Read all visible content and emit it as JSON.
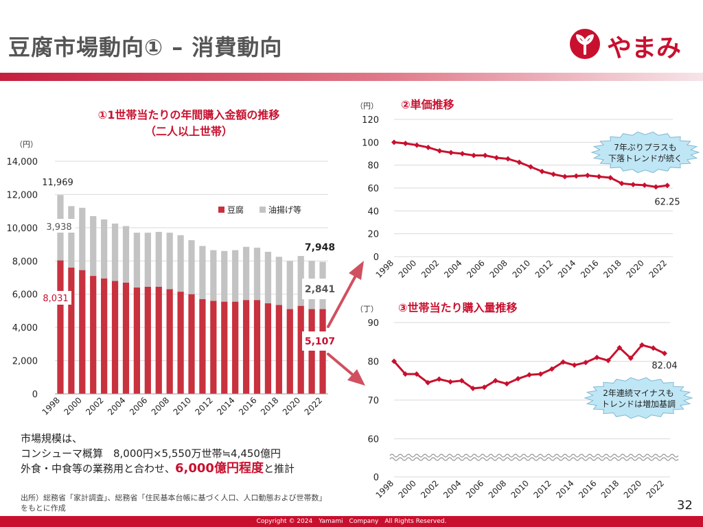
{
  "page": {
    "title": "豆腐市場動向① – 消費動向",
    "logo_text": "やまみ",
    "page_number": "32",
    "copyright": "Copyright © 2024　Yamami　Company　All Rights Reserved.",
    "colors": {
      "accent": "#c8102e",
      "bar_tofu": "#c8313e",
      "bar_fried": "#c3c3c3",
      "bubble": "#bfe6f5"
    }
  },
  "market": {
    "line1": "市場規模は、",
    "line2": "コンシューマ概算　8,000円×5,550万世帯≒4,450億円",
    "line3_pre": "外食・中食等の業務用と合わせ、",
    "line3_hl": "6,000億円程度",
    "line3_post": "と推計"
  },
  "source": "出所）総務省「家計調査」、総務省「住民基本台帳に基づく人口、人口動態および世帯数」をもとに作成",
  "chart_data": [
    {
      "type": "bar",
      "stacked": true,
      "title_line1": "①1世帯当たりの年間購入金額の推移",
      "title_line2": "（二人以上世帯）",
      "unit": "（円）",
      "ylim": [
        0,
        14000
      ],
      "yticks": [
        "0",
        "2,000",
        "4,000",
        "6,000",
        "8,000",
        "10,000",
        "12,000",
        "14,000"
      ],
      "xticks": [
        "1998",
        "2000",
        "2002",
        "2004",
        "2006",
        "2008",
        "2010",
        "2012",
        "2014",
        "2016",
        "2018",
        "2020",
        "2022"
      ],
      "categories": [
        "1998",
        "1999",
        "2000",
        "2001",
        "2002",
        "2003",
        "2004",
        "2005",
        "2006",
        "2007",
        "2008",
        "2009",
        "2010",
        "2011",
        "2012",
        "2013",
        "2014",
        "2015",
        "2016",
        "2017",
        "2018",
        "2019",
        "2020",
        "2021",
        "2022"
      ],
      "legend": [
        "豆腐",
        "油揚げ等"
      ],
      "legend_position": "top-right",
      "series": [
        {
          "name": "豆腐",
          "values": [
            8031,
            7600,
            7450,
            7100,
            6950,
            6800,
            6700,
            6400,
            6450,
            6450,
            6300,
            6150,
            6000,
            5700,
            5600,
            5550,
            5550,
            5650,
            5650,
            5450,
            5350,
            5100,
            5300,
            5100,
            5107
          ]
        },
        {
          "name": "油揚げ等",
          "values": [
            3938,
            3700,
            3750,
            3600,
            3550,
            3450,
            3400,
            3300,
            3250,
            3300,
            3400,
            3400,
            3250,
            3200,
            3050,
            3050,
            3100,
            3200,
            3150,
            3100,
            2900,
            2900,
            3000,
            2900,
            2841
          ]
        }
      ],
      "annotations": {
        "total_first": "11,969",
        "fried_first": "3,938",
        "tofu_first": "8,031",
        "total_last": "7,948",
        "fried_last": "2,841",
        "tofu_last": "5,107"
      }
    },
    {
      "type": "line",
      "title": "②単価推移",
      "unit": "（円）",
      "ylim": [
        0,
        120
      ],
      "yticks": [
        "0",
        "20",
        "40",
        "60",
        "80",
        "100",
        "120"
      ],
      "xticks": [
        "1998",
        "2000",
        "2002",
        "2004",
        "2006",
        "2008",
        "2010",
        "2012",
        "2014",
        "2016",
        "2018",
        "2020",
        "2022"
      ],
      "x": [
        "1998",
        "1999",
        "2000",
        "2001",
        "2002",
        "2003",
        "2004",
        "2005",
        "2006",
        "2007",
        "2008",
        "2009",
        "2010",
        "2011",
        "2012",
        "2013",
        "2014",
        "2015",
        "2016",
        "2017",
        "2018",
        "2019",
        "2020",
        "2021",
        "2022"
      ],
      "values": [
        100,
        99,
        97.5,
        95.5,
        92.5,
        91,
        90,
        88.5,
        88.5,
        86.5,
        85.5,
        82.5,
        78.5,
        74.5,
        72,
        70,
        70.5,
        71,
        70,
        69,
        64,
        63,
        62.5,
        61,
        62.25
      ],
      "label_last": "62.25",
      "callout_line1": "7年ぶりプラスも",
      "callout_line2": "下落トレンドが続く"
    },
    {
      "type": "line",
      "title": "③世帯当たり購入量推移",
      "unit": "（丁）",
      "ylim": [
        0,
        90
      ],
      "yticks": [
        "0",
        "60",
        "70",
        "80",
        "90"
      ],
      "axis_break": true,
      "xticks": [
        "1998",
        "2000",
        "2002",
        "2004",
        "2006",
        "2008",
        "2010",
        "2012",
        "2014",
        "2016",
        "2018",
        "2020",
        "2022"
      ],
      "x": [
        "1998",
        "1999",
        "2000",
        "2001",
        "2002",
        "2003",
        "2004",
        "2005",
        "2006",
        "2007",
        "2008",
        "2009",
        "2010",
        "2011",
        "2012",
        "2013",
        "2014",
        "2015",
        "2016",
        "2017",
        "2018",
        "2019",
        "2020",
        "2021",
        "2022"
      ],
      "values": [
        80,
        76.7,
        76.7,
        74.5,
        75.4,
        74.7,
        75,
        73,
        73.3,
        75,
        74.2,
        75.5,
        76.5,
        76.7,
        78,
        79.8,
        79,
        79.7,
        81,
        80.2,
        83.5,
        80.8,
        84.2,
        83.4,
        82.04
      ],
      "label_last": "82.04",
      "callout_line1": "2年連続マイナスも",
      "callout_line2": "トレンドは増加基調"
    }
  ]
}
